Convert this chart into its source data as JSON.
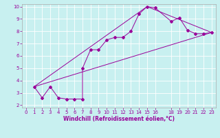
{
  "xlabel": "Windchill (Refroidissement éolien,°C)",
  "bg_color": "#c8f0f0",
  "line_color": "#990099",
  "grid_color": "#ffffff",
  "xlim": [
    -0.5,
    23.5
  ],
  "ylim": [
    1.8,
    10.2
  ],
  "xticks": [
    0,
    1,
    2,
    3,
    4,
    5,
    6,
    7,
    8,
    9,
    10,
    11,
    12,
    13,
    14,
    15,
    16,
    18,
    19,
    20,
    21,
    22,
    23
  ],
  "yticks": [
    2,
    3,
    4,
    5,
    6,
    7,
    8,
    9,
    10
  ],
  "series1_x": [
    1,
    2,
    3,
    4,
    5,
    6,
    7,
    7,
    8,
    9,
    10,
    11,
    12,
    13,
    14,
    15,
    16,
    18,
    19,
    20,
    21,
    22,
    23
  ],
  "series1_y": [
    3.5,
    2.6,
    3.5,
    2.6,
    2.5,
    2.5,
    2.5,
    5.0,
    6.5,
    6.5,
    7.3,
    7.5,
    7.5,
    8.0,
    9.4,
    10.0,
    9.9,
    8.8,
    9.1,
    8.1,
    7.8,
    7.8,
    7.9
  ],
  "series2_x": [
    1,
    23
  ],
  "series2_y": [
    3.5,
    7.9
  ],
  "series3_x": [
    1,
    15,
    23
  ],
  "series3_y": [
    3.5,
    10.0,
    7.9
  ]
}
